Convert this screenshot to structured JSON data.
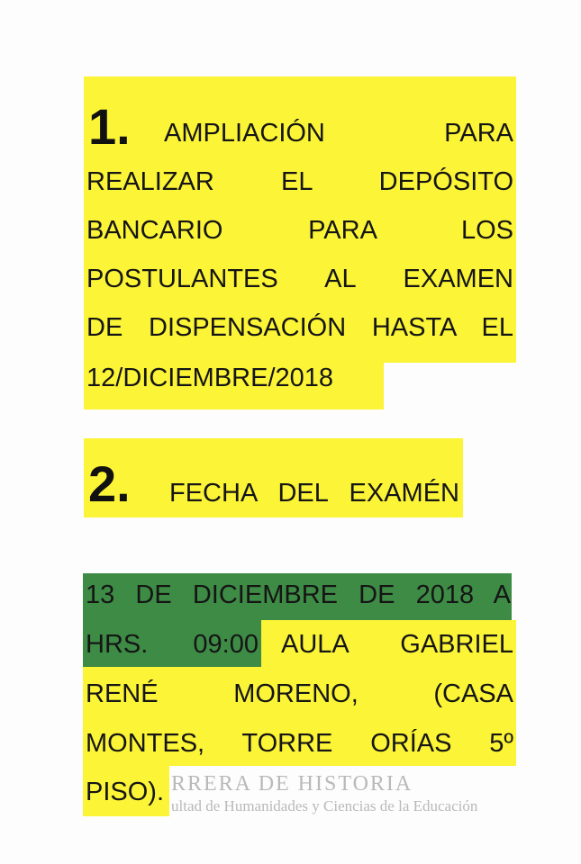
{
  "items": [
    {
      "number": "1.",
      "lines": [
        "AMPLIACIÓN PARA",
        "REALIZAR EL DEPÓSITO",
        "BANCARIO PARA LOS",
        "POSTULANTES AL EXAMEN",
        "DE DISPENSACIÓN HASTA EL",
        "12/DICIEMBRE/2018"
      ]
    },
    {
      "number": "2.",
      "lines": [
        "FECHA DEL EXAMÉN"
      ]
    }
  ],
  "schedule": {
    "lines": [
      [
        "13 DE DICIEMBRE DE 2018 A"
      ],
      [
        "HRS. 09:00",
        "AULA GABRIEL"
      ],
      [
        "RENÉ MORENO, (CASA"
      ],
      [
        "MONTES, TORRE ORÍAS 5º"
      ],
      [
        "PISO)."
      ]
    ]
  },
  "watermark": {
    "title": "RRERA DE HISTORIA",
    "subtitle": "ultad de Humanidades y Ciencias de la Educación"
  }
}
